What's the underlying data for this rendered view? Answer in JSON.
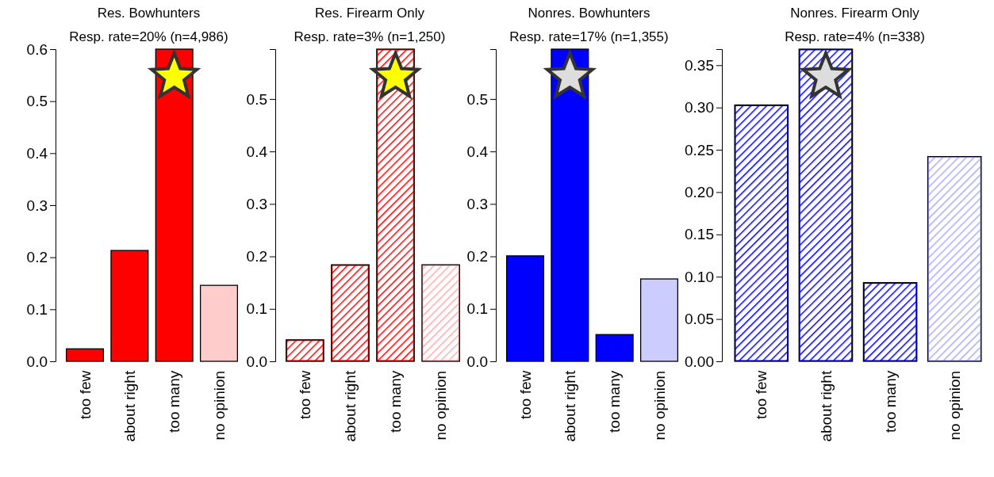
{
  "chart_data": [
    {
      "type": "bar",
      "title": "Res. Bowhunters",
      "subtitle": "Resp. rate=20% (n=4,986)",
      "categories": [
        "too few",
        "about right",
        "too many",
        "no opinion"
      ],
      "values": [
        0.024,
        0.213,
        0.6,
        0.146
      ],
      "colors": [
        "#ff0000",
        "#ff0000",
        "#ff0000",
        "#ffcccc"
      ],
      "ylim": [
        0,
        0.6
      ],
      "yticks": [
        {
          "value": 0,
          "label": "0.0"
        },
        {
          "value": 0.1,
          "label": "0.1"
        },
        {
          "value": 0.2,
          "label": "0.2"
        },
        {
          "value": 0.3,
          "label": "0.3"
        },
        {
          "value": 0.4,
          "label": "0.4"
        },
        {
          "value": 0.5,
          "label": "0.5"
        },
        {
          "value": 0.6,
          "label": "0.6"
        }
      ],
      "grid": false
    },
    {
      "type": "bar",
      "title": "Res. Firearm Only",
      "subtitle": "Resp. rate=3% (n=1,250)",
      "categories": [
        "too few",
        "about right",
        "too many",
        "no opinion"
      ],
      "values": [
        0.041,
        0.184,
        0.595,
        0.184
      ],
      "colors": [
        "#ff0000",
        "#ff0000",
        "#ff0000",
        "#ffaaaa"
      ],
      "ylim": [
        0,
        0.595
      ],
      "yticks": [
        {
          "value": 0,
          "label": "0.0"
        },
        {
          "value": 0.1,
          "label": "0.1"
        },
        {
          "value": 0.2,
          "label": "0.2"
        },
        {
          "value": 0.3,
          "label": "0.3"
        },
        {
          "value": 0.4,
          "label": "0.4"
        },
        {
          "value": 0.5,
          "label": "0.5"
        }
      ],
      "grid": false
    },
    {
      "type": "bar",
      "title": "Nonres. Bowhunters",
      "subtitle": "Resp. rate=17% (n=1,355)",
      "categories": [
        "too few",
        "about right",
        "too many",
        "no opinion"
      ],
      "values": [
        0.201,
        0.595,
        0.051,
        0.157
      ],
      "colors": [
        "#0000ff",
        "#0000ff",
        "#0000ff",
        "#ccccff"
      ],
      "ylim": [
        0,
        0.595
      ],
      "yticks": [
        {
          "value": 0,
          "label": "0.0"
        },
        {
          "value": 0.1,
          "label": "0.1"
        },
        {
          "value": 0.2,
          "label": "0.2"
        },
        {
          "value": 0.3,
          "label": "0.3"
        },
        {
          "value": 0.4,
          "label": "0.4"
        },
        {
          "value": 0.5,
          "label": "0.5"
        }
      ],
      "grid": false
    },
    {
      "type": "bar",
      "title": "Nonres. Firearm Only",
      "subtitle": "Resp. rate=4% (n=338)",
      "categories": [
        "too few",
        "about right",
        "too many",
        "no opinion"
      ],
      "values": [
        0.303,
        0.369,
        0.093,
        0.242
      ],
      "colors": [
        "#0000ff",
        "#0000ff",
        "#0000ff",
        "#aaaaff"
      ],
      "ylim": [
        0,
        0.369
      ],
      "yticks": [
        {
          "value": 0,
          "label": "0.00"
        },
        {
          "value": 0.05,
          "label": "0.05"
        },
        {
          "value": 0.1,
          "label": "0.10"
        },
        {
          "value": 0.15,
          "label": "0.15"
        },
        {
          "value": 0.2,
          "label": "0.20"
        },
        {
          "value": 0.25,
          "label": "0.25"
        },
        {
          "value": 0.3,
          "label": "0.30"
        },
        {
          "value": 0.35,
          "label": "0.35"
        }
      ],
      "grid": false
    }
  ]
}
